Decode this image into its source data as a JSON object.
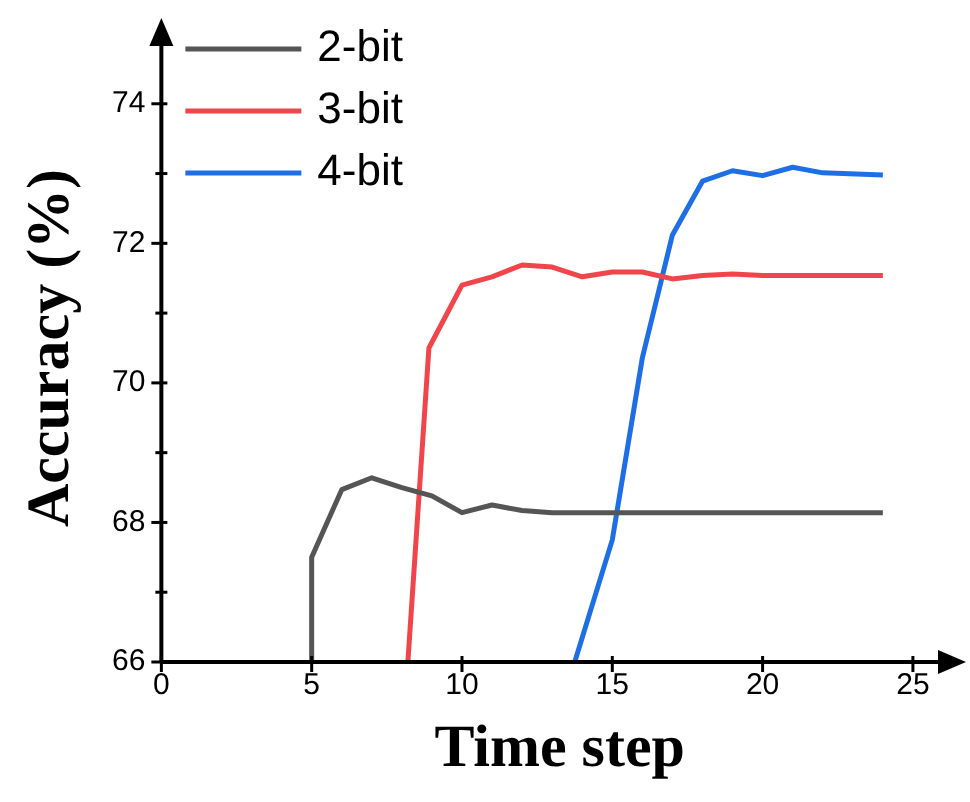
{
  "chart_data": {
    "type": "line",
    "xlabel": "Time step",
    "ylabel": "Accuracy (%)",
    "xlim": [
      0,
      26.5
    ],
    "xticks": [
      0,
      5,
      10,
      15,
      20,
      25
    ],
    "ylim": [
      66,
      75
    ],
    "yticks": [
      66,
      {
        "value": 67,
        "label": null
      },
      68,
      {
        "value": 69,
        "label": null
      },
      70,
      {
        "value": 71,
        "label": null
      },
      72,
      {
        "value": 73,
        "label": null
      },
      74
    ],
    "series": [
      {
        "name": "2-bit",
        "color": "#555555",
        "x": [
          5,
          5,
          6,
          7,
          8,
          9,
          10,
          11,
          12,
          13,
          24
        ],
        "values": [
          66,
          67.5,
          68.47,
          68.64,
          68.5,
          68.38,
          68.14,
          68.25,
          68.17,
          68.14,
          68.14
        ]
      },
      {
        "name": "3-bit",
        "color": "#f0454a",
        "x": [
          8.2,
          8.9,
          10,
          11,
          12,
          13,
          14,
          15,
          16,
          17,
          18,
          19,
          20,
          24
        ],
        "values": [
          66,
          70.5,
          71.4,
          71.52,
          71.69,
          71.66,
          71.52,
          71.59,
          71.59,
          71.49,
          71.54,
          71.56,
          71.54,
          71.54
        ]
      },
      {
        "name": "4-bit",
        "color": "#1e6fe6",
        "x": [
          13.75,
          15,
          16,
          17,
          18,
          19,
          20,
          21,
          22,
          24
        ],
        "values": [
          66,
          67.75,
          70.36,
          72.12,
          72.89,
          73.04,
          72.97,
          73.09,
          73.01,
          72.98
        ]
      }
    ],
    "legend": "top left",
    "grid": false,
    "marker": "none",
    "line_style": "solid"
  }
}
